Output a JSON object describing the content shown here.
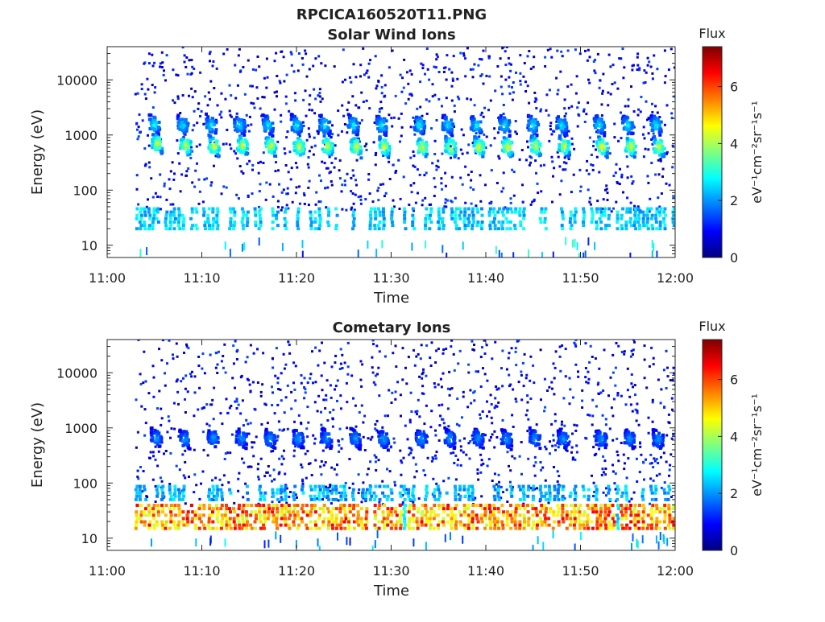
{
  "title": "RPCICA160520T11.PNG",
  "chart_data": [
    {
      "type": "heatmap",
      "title": "Solar Wind Ions",
      "xlabel": "Time",
      "ylabel": "Energy (eV)",
      "x_ticks": [
        "11:00",
        "11:10",
        "11:20",
        "11:30",
        "11:40",
        "11:50",
        "12:00"
      ],
      "x_range": [
        "11:00",
        "12:00"
      ],
      "y_scale": "log",
      "y_ticks": [
        "10",
        "100",
        "1000",
        "10000"
      ],
      "y_range": [
        6,
        40000
      ],
      "colorbar": {
        "title": "Flux",
        "label": "eV⁻¹cm⁻²sr⁻¹s⁻¹",
        "ticks": [
          "0",
          "2",
          "4",
          "6"
        ],
        "range": [
          0,
          7.4
        ],
        "colormap": "jet"
      },
      "peaks": [
        {
          "t_min": 5,
          "energy_ev": 1550,
          "flux": 3.0
        },
        {
          "t_min": 5.3,
          "energy_ev": 700,
          "flux": 4.5
        },
        {
          "t_min": 8,
          "energy_ev": 1500,
          "flux": 2.8
        },
        {
          "t_min": 8.3,
          "energy_ev": 640,
          "flux": 4.6
        },
        {
          "t_min": 11,
          "energy_ev": 1500,
          "flux": 2.8
        },
        {
          "t_min": 11.3,
          "energy_ev": 620,
          "flux": 4.7
        },
        {
          "t_min": 14,
          "energy_ev": 1500,
          "flux": 2.8
        },
        {
          "t_min": 14.3,
          "energy_ev": 640,
          "flux": 4.6
        },
        {
          "t_min": 17,
          "energy_ev": 1500,
          "flux": 2.8
        },
        {
          "t_min": 17.3,
          "energy_ev": 630,
          "flux": 4.6
        },
        {
          "t_min": 20,
          "energy_ev": 1500,
          "flux": 2.9
        },
        {
          "t_min": 20.3,
          "energy_ev": 610,
          "flux": 4.7
        },
        {
          "t_min": 23,
          "energy_ev": 1500,
          "flux": 2.9
        },
        {
          "t_min": 23.3,
          "energy_ev": 630,
          "flux": 4.6
        },
        {
          "t_min": 26,
          "energy_ev": 1500,
          "flux": 2.9
        },
        {
          "t_min": 26.3,
          "energy_ev": 610,
          "flux": 4.7
        },
        {
          "t_min": 29,
          "energy_ev": 1500,
          "flux": 2.9
        },
        {
          "t_min": 29.3,
          "energy_ev": 610,
          "flux": 4.6
        },
        {
          "t_min": 33,
          "energy_ev": 1500,
          "flux": 2.9
        },
        {
          "t_min": 33.3,
          "energy_ev": 600,
          "flux": 4.6
        },
        {
          "t_min": 36,
          "energy_ev": 1500,
          "flux": 2.8
        },
        {
          "t_min": 36.3,
          "energy_ev": 600,
          "flux": 4.7
        },
        {
          "t_min": 39,
          "energy_ev": 1500,
          "flux": 2.9
        },
        {
          "t_min": 39.3,
          "energy_ev": 600,
          "flux": 4.7
        },
        {
          "t_min": 42,
          "energy_ev": 1500,
          "flux": 2.9
        },
        {
          "t_min": 42.3,
          "energy_ev": 610,
          "flux": 4.7
        },
        {
          "t_min": 45,
          "energy_ev": 1500,
          "flux": 2.9
        },
        {
          "t_min": 45.3,
          "energy_ev": 620,
          "flux": 4.6
        },
        {
          "t_min": 48,
          "energy_ev": 1500,
          "flux": 2.9
        },
        {
          "t_min": 48.3,
          "energy_ev": 620,
          "flux": 4.6
        },
        {
          "t_min": 52,
          "energy_ev": 1500,
          "flux": 2.9
        },
        {
          "t_min": 52.3,
          "energy_ev": 610,
          "flux": 4.7
        },
        {
          "t_min": 55,
          "energy_ev": 1500,
          "flux": 2.9
        },
        {
          "t_min": 55.3,
          "energy_ev": 610,
          "flux": 4.7
        },
        {
          "t_min": 58,
          "energy_ev": 1500,
          "flux": 2.9
        },
        {
          "t_min": 58.3,
          "energy_ev": 600,
          "flux": 4.6
        }
      ],
      "bands": [
        {
          "energy_ev": [
            20,
            50
          ],
          "t_range_min": [
            3,
            60
          ],
          "flux": 2.5
        }
      ]
    },
    {
      "type": "heatmap",
      "title": "Cometary Ions",
      "xlabel": "Time",
      "ylabel": "Energy (eV)",
      "x_ticks": [
        "11:00",
        "11:10",
        "11:20",
        "11:30",
        "11:40",
        "11:50",
        "12:00"
      ],
      "x_range": [
        "11:00",
        "12:00"
      ],
      "y_scale": "log",
      "y_ticks": [
        "10",
        "100",
        "1000",
        "10000"
      ],
      "y_range": [
        6,
        40000
      ],
      "colorbar": {
        "title": "Flux",
        "label": "eV⁻¹cm⁻²sr⁻¹s⁻¹",
        "ticks": [
          "0",
          "2",
          "4",
          "6"
        ],
        "range": [
          0,
          7.4
        ],
        "colormap": "jet"
      },
      "peaks": [
        {
          "t_min": 5.2,
          "energy_ev": 650,
          "flux": 2.2
        },
        {
          "t_min": 8.2,
          "energy_ev": 620,
          "flux": 2.2
        },
        {
          "t_min": 11.2,
          "energy_ev": 650,
          "flux": 2.2
        },
        {
          "t_min": 14.2,
          "energy_ev": 650,
          "flux": 2.2
        },
        {
          "t_min": 17.2,
          "energy_ev": 620,
          "flux": 2.2
        },
        {
          "t_min": 20.2,
          "energy_ev": 640,
          "flux": 2.2
        },
        {
          "t_min": 23.2,
          "energy_ev": 650,
          "flux": 2.2
        },
        {
          "t_min": 26.2,
          "energy_ev": 640,
          "flux": 2.2
        },
        {
          "t_min": 29.2,
          "energy_ev": 620,
          "flux": 2.2
        },
        {
          "t_min": 33.2,
          "energy_ev": 620,
          "flux": 2.2
        },
        {
          "t_min": 36.2,
          "energy_ev": 640,
          "flux": 2.2
        },
        {
          "t_min": 39.2,
          "energy_ev": 650,
          "flux": 2.2
        },
        {
          "t_min": 42.2,
          "energy_ev": 620,
          "flux": 2.2
        },
        {
          "t_min": 45.2,
          "energy_ev": 640,
          "flux": 2.2
        },
        {
          "t_min": 48.2,
          "energy_ev": 630,
          "flux": 2.2
        },
        {
          "t_min": 52.2,
          "energy_ev": 630,
          "flux": 2.2
        },
        {
          "t_min": 55.2,
          "energy_ev": 640,
          "flux": 2.2
        },
        {
          "t_min": 58.2,
          "energy_ev": 620,
          "flux": 2.2
        }
      ],
      "bands": [
        {
          "energy_ev": [
            15,
            45
          ],
          "t_range_min": [
            3,
            60
          ],
          "flux": 5.5,
          "bursts_at_min": [
            4.5,
            7.5,
            10.5,
            14,
            17,
            20,
            23,
            26,
            29.5,
            33,
            36.5,
            39.5,
            42.5,
            46,
            49,
            52,
            55.5,
            58.5
          ]
        },
        {
          "energy_ev": [
            50,
            90
          ],
          "t_range_min": [
            3,
            60
          ],
          "flux": 2.3
        }
      ]
    }
  ]
}
